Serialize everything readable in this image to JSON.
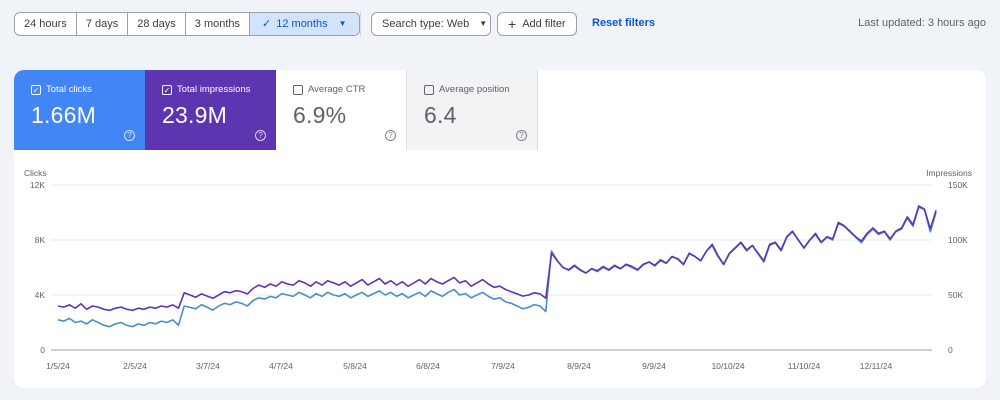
{
  "toolbar": {
    "ranges": [
      {
        "label": "24 hours",
        "active": false
      },
      {
        "label": "7 days",
        "active": false
      },
      {
        "label": "28 days",
        "active": false
      },
      {
        "label": "3 months",
        "active": false
      },
      {
        "label": "12 months",
        "active": true
      }
    ],
    "search_type": "Search type: Web",
    "add_filter": "Add filter",
    "reset_filters": "Reset filters",
    "last_updated": "Last updated: 3 hours ago"
  },
  "metrics": [
    {
      "id": "clicks",
      "label": "Total clicks",
      "value": "1.66M",
      "checked": true,
      "color": "#4285f4"
    },
    {
      "id": "impr",
      "label": "Total impressions",
      "value": "23.9M",
      "checked": true,
      "color": "#5e35b1"
    },
    {
      "id": "ctr",
      "label": "Average CTR",
      "value": "6.9%",
      "checked": false
    },
    {
      "id": "pos",
      "label": "Average position",
      "value": "6.4",
      "checked": false
    }
  ],
  "chart_data": {
    "type": "line",
    "left_axis_title": "Clicks",
    "right_axis_title": "Impressions",
    "left_ticks": [
      "12K",
      "8K",
      "4K",
      "0"
    ],
    "right_ticks": [
      "150K",
      "100K",
      "50K",
      "0"
    ],
    "left_range": [
      0,
      12000
    ],
    "right_range": [
      0,
      150000
    ],
    "x_ticks": [
      "1/5/24",
      "2/5/24",
      "3/7/24",
      "4/7/24",
      "5/8/24",
      "6/8/24",
      "7/9/24",
      "8/9/24",
      "9/9/24",
      "10/10/24",
      "11/10/24",
      "12/11/24"
    ],
    "grid": true,
    "series": [
      {
        "name": "Total clicks",
        "axis": "left",
        "color": "#4a90c8",
        "values": [
          2200,
          2100,
          2300,
          2000,
          2100,
          1900,
          2200,
          2000,
          1800,
          1700,
          1900,
          2000,
          1800,
          1700,
          1900,
          1800,
          2000,
          1900,
          2100,
          2000,
          2200,
          1800,
          3200,
          3100,
          3000,
          3300,
          3100,
          2900,
          3200,
          3400,
          3300,
          3500,
          3400,
          3200,
          3600,
          3800,
          3700,
          3900,
          3800,
          4100,
          4000,
          3900,
          4200,
          4000,
          3800,
          4100,
          3900,
          4200,
          4000,
          3900,
          4100,
          3800,
          4000,
          4200,
          3900,
          4100,
          4300,
          4000,
          4200,
          3900,
          4100,
          3800,
          4000,
          4200,
          3900,
          4300,
          4100,
          3900,
          4200,
          4400,
          4000,
          4100,
          3800,
          4000,
          4200,
          3900,
          3700,
          3800,
          3500,
          3400,
          3200,
          3000,
          3100,
          3300,
          3200,
          2800,
          7200,
          6500,
          6000,
          5800,
          6100,
          5800,
          5600,
          5900,
          5700,
          6000,
          5800,
          6100,
          5900,
          6200,
          6000,
          5800,
          6200,
          6400,
          6100,
          6500,
          6300,
          6800,
          6600,
          6200,
          7000,
          6800,
          6500,
          7200,
          7600,
          6800,
          6200,
          7000,
          7400,
          7800,
          7200,
          7600,
          7000,
          6400,
          7600,
          7800,
          7200,
          8200,
          8600,
          8000,
          7400,
          8000,
          8400,
          7800,
          8200,
          8000,
          9200,
          9000,
          8600,
          8200,
          7800,
          8400,
          8800,
          8400,
          8600,
          8000,
          8600,
          8800,
          9600,
          9000,
          10400,
          10200,
          8600,
          10000
        ]
      },
      {
        "name": "Total impressions",
        "axis": "right",
        "color": "#5e35b1",
        "values": [
          40000,
          39000,
          41000,
          38000,
          42000,
          37000,
          40000,
          39000,
          37000,
          36000,
          38000,
          39000,
          37000,
          36000,
          38000,
          37000,
          39000,
          38000,
          40000,
          39000,
          41000,
          38000,
          52000,
          50000,
          48000,
          51000,
          49000,
          47000,
          50000,
          53000,
          52000,
          54000,
          53000,
          51000,
          56000,
          59000,
          57000,
          60000,
          58000,
          62000,
          60000,
          59000,
          63000,
          61000,
          58000,
          62000,
          59000,
          63000,
          61000,
          59000,
          62000,
          58000,
          61000,
          64000,
          59000,
          62000,
          65000,
          60000,
          63000,
          59000,
          62000,
          58000,
          61000,
          64000,
          60000,
          65000,
          62000,
          60000,
          63000,
          66000,
          61000,
          63000,
          58000,
          61000,
          64000,
          60000,
          57000,
          58000,
          55000,
          53000,
          51000,
          49000,
          50000,
          52000,
          51000,
          47000,
          88000,
          81000,
          75000,
          73000,
          77000,
          73000,
          70000,
          74000,
          72000,
          76000,
          73000,
          77000,
          74000,
          78000,
          76000,
          73000,
          78000,
          80000,
          77000,
          82000,
          79000,
          85000,
          83000,
          78000,
          88000,
          85000,
          81000,
          90000,
          96000,
          86000,
          78000,
          88000,
          93000,
          98000,
          91000,
          95000,
          88000,
          81000,
          96000,
          98000,
          91000,
          103000,
          108000,
          100000,
          93000,
          100000,
          106000,
          98000,
          103000,
          101000,
          116000,
          113000,
          108000,
          103000,
          99000,
          106000,
          111000,
          106000,
          108000,
          101000,
          108000,
          111000,
          121000,
          114000,
          131000,
          128000,
          110000,
          127000
        ]
      }
    ]
  }
}
